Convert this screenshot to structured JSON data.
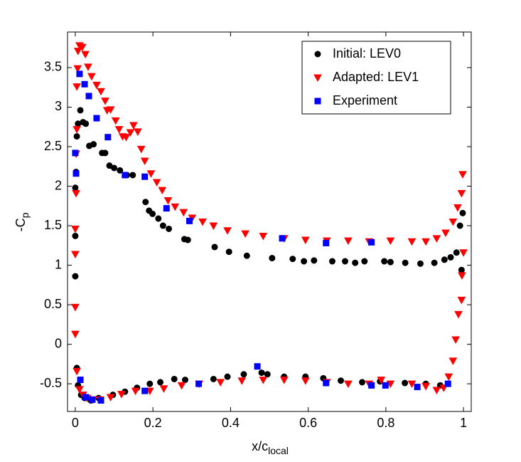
{
  "chart_data": {
    "type": "scatter",
    "xlabel": {
      "text": "x/c",
      "subscript": "local"
    },
    "ylabel": {
      "text": "-C",
      "subscript": "p"
    },
    "xlim": [
      -0.02,
      1.02
    ],
    "ylim": [
      -0.85,
      3.95
    ],
    "xticks": [
      0,
      0.2,
      0.4,
      0.6,
      0.8,
      1
    ],
    "yticks": [
      -0.5,
      0,
      0.5,
      1,
      1.5,
      2,
      2.5,
      3,
      3.5
    ],
    "grid": false,
    "legend": "upper right",
    "series": [
      {
        "name": "Initial: LEV0",
        "color": "#000000",
        "marker": "circle",
        "x": [
          0,
          0,
          0,
          0.002,
          0.004,
          0.007,
          0.013,
          0.02,
          0.027,
          0.036,
          0.047,
          0.069,
          0.077,
          0.088,
          0.1,
          0.115,
          0.133,
          0.148,
          0.181,
          0.19,
          0.199,
          0.214,
          0.226,
          0.241,
          0.281,
          0.29,
          0.359,
          0.396,
          0.442,
          0.507,
          0.56,
          0.589,
          0.615,
          0.662,
          0.695,
          0.721,
          0.745,
          0.796,
          0.812,
          0.85,
          0.889,
          0.925,
          0.951,
          0.967,
          0.982,
          0.991,
          0.998,
          0.995,
          0.004,
          0.007,
          0.015,
          0.024,
          0.04,
          0.06,
          0.097,
          0.128,
          0.159,
          0.192,
          0.219,
          0.255,
          0.283,
          0.356,
          0.392,
          0.434,
          0.48,
          0.495,
          0.538,
          0.593,
          0.639,
          0.684,
          0.739,
          0.785,
          0.849,
          0.903,
          0.94
        ],
        "values": [
          0.86,
          1.37,
          1.98,
          2.18,
          2.63,
          2.79,
          2.96,
          2.81,
          2.79,
          2.51,
          2.53,
          2.42,
          2.42,
          2.26,
          2.23,
          2.2,
          2.14,
          2.14,
          1.8,
          1.69,
          1.65,
          1.59,
          1.5,
          1.46,
          1.33,
          1.32,
          1.23,
          1.17,
          1.12,
          1.09,
          1.08,
          1.05,
          1.06,
          1.05,
          1.05,
          1.03,
          1.05,
          1.05,
          1.04,
          1.03,
          1.02,
          1.03,
          1.07,
          1.1,
          1.16,
          1.5,
          1.66,
          0.94,
          -0.3,
          -0.52,
          -0.64,
          -0.68,
          -0.71,
          -0.68,
          -0.64,
          -0.6,
          -0.55,
          -0.5,
          -0.48,
          -0.44,
          -0.45,
          -0.44,
          -0.41,
          -0.38,
          -0.36,
          -0.38,
          -0.41,
          -0.41,
          -0.43,
          -0.46,
          -0.48,
          -0.47,
          -0.49,
          -0.5,
          -0.52
        ]
      },
      {
        "name": "Adapted: LEV1",
        "color": "#ff0000",
        "marker": "triangle-down",
        "x": [
          0,
          0,
          0,
          0,
          0.002,
          0.002,
          0.004,
          0.004,
          0.006,
          0.007,
          0.011,
          0.018,
          0.026,
          0.033,
          0.042,
          0.055,
          0.066,
          0.077,
          0.082,
          0.091,
          0.104,
          0.113,
          0.122,
          0.131,
          0.142,
          0.15,
          0.161,
          0.17,
          0.179,
          0.195,
          0.21,
          0.224,
          0.239,
          0.257,
          0.279,
          0.301,
          0.328,
          0.356,
          0.392,
          0.438,
          0.484,
          0.538,
          0.593,
          0.648,
          0.703,
          0.757,
          0.812,
          0.867,
          0.903,
          0.931,
          0.954,
          0.973,
          0.985,
          0.995,
          0.998,
          1,
          0.996,
          0.004,
          0.011,
          0.02,
          0.031,
          0.046,
          0.064,
          0.091,
          0.119,
          0.155,
          0.192,
          0.228,
          0.274,
          0.319,
          0.374,
          0.429,
          0.484,
          0.538,
          0.593,
          0.648,
          0.703,
          0.757,
          0.788,
          0.812,
          0.867,
          0.903,
          0.931,
          0.949,
          0.962,
          0.973,
          0.98,
          0.987,
          0.995
        ],
        "values": [
          0.13,
          0.47,
          1.14,
          1.46,
          1.91,
          2.41,
          2.72,
          3.26,
          3.49,
          3.71,
          3.78,
          3.76,
          3.67,
          3.51,
          3.39,
          3.28,
          3.2,
          3.08,
          2.96,
          2.97,
          2.83,
          2.72,
          2.63,
          2.62,
          2.68,
          2.77,
          2.69,
          2.47,
          2.32,
          2.16,
          2.05,
          1.95,
          1.82,
          1.74,
          1.67,
          1.6,
          1.55,
          1.5,
          1.44,
          1.4,
          1.37,
          1.34,
          1.32,
          1.31,
          1.31,
          1.3,
          1.31,
          1.3,
          1.3,
          1.34,
          1.41,
          1.55,
          1.73,
          1.91,
          2.15,
          1.16,
          0.87,
          -0.34,
          -0.57,
          -0.64,
          -0.68,
          -0.7,
          -0.7,
          -0.67,
          -0.63,
          -0.59,
          -0.59,
          -0.56,
          -0.52,
          -0.5,
          -0.48,
          -0.46,
          -0.45,
          -0.45,
          -0.46,
          -0.48,
          -0.5,
          -0.5,
          -0.45,
          -0.5,
          -0.5,
          -0.53,
          -0.58,
          -0.55,
          -0.41,
          -0.21,
          0.06,
          0.38,
          0.56
        ]
      },
      {
        "name": "Experiment",
        "color": "#0000ff",
        "marker": "square",
        "x": [
          0,
          0.002,
          0.011,
          0.024,
          0.035,
          0.055,
          0.084,
          0.128,
          0.179,
          0.235,
          0.294,
          0.533,
          0.646,
          0.763,
          0.013,
          0.027,
          0.044,
          0.066,
          0.179,
          0.318,
          0.469,
          0.646,
          0.763,
          0.799,
          0.881,
          0.96
        ],
        "values": [
          2.42,
          2.16,
          3.42,
          3.29,
          3.14,
          2.86,
          2.62,
          2.14,
          2.12,
          1.72,
          1.56,
          1.34,
          1.28,
          1.29,
          -0.45,
          -0.67,
          -0.7,
          -0.71,
          -0.59,
          -0.5,
          -0.28,
          -0.49,
          -0.52,
          -0.52,
          -0.54,
          -0.5
        ]
      }
    ]
  }
}
